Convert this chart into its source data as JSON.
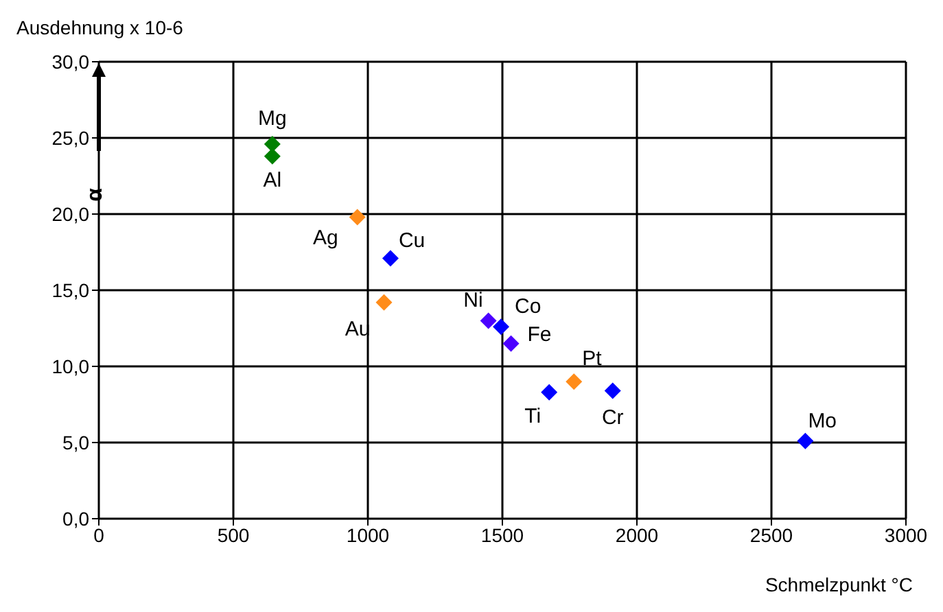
{
  "chart_data": {
    "type": "scatter",
    "ylabel": "Ausdehnung x 10-6",
    "xlabel": "Schmelzpunkt °C",
    "annotations": [
      "α",
      {
        "text": "Mg",
        "x": 645,
        "y": 24.6
      },
      {
        "text": "Al",
        "x": 645,
        "y": 23.8
      },
      {
        "text": "Ag",
        "x": 961,
        "y": 19.8
      },
      {
        "text": "Cu",
        "x": 1084,
        "y": 17.1
      },
      {
        "text": "Au",
        "x": 1060,
        "y": 14.2
      },
      {
        "text": "Ni",
        "x": 1448,
        "y": 13.0
      },
      {
        "text": "Co",
        "x": 1495,
        "y": 12.6
      },
      {
        "text": "Fe",
        "x": 1532,
        "y": 11.5
      },
      {
        "text": "Ti",
        "x": 1674,
        "y": 8.3
      },
      {
        "text": "Pt",
        "x": 1766,
        "y": 9.0
      },
      {
        "text": "Cr",
        "x": 1910,
        "y": 8.4
      },
      {
        "text": "Mo",
        "x": 2626,
        "y": 5.1
      }
    ],
    "x": [
      645,
      645,
      961,
      1084,
      1060,
      1448,
      1495,
      1532,
      1674,
      1766,
      1910,
      2626
    ],
    "values": [
      24.6,
      23.8,
      19.8,
      17.1,
      14.2,
      13.0,
      12.6,
      11.5,
      8.3,
      9.0,
      8.4,
      5.1
    ],
    "colors": [
      "#008000",
      "#008000",
      "#ff8c1a",
      "#0000ff",
      "#ff8c1a",
      "#4b00ff",
      "#0000ff",
      "#4b00ff",
      "#0000ff",
      "#ff8c1a",
      "#0000ff",
      "#0000ff"
    ],
    "marker": "diamond",
    "grid": true,
    "legend": false,
    "xlim": [
      0,
      3000
    ],
    "xticks": [
      0,
      500,
      1000,
      1500,
      2000,
      2500,
      3000
    ],
    "ylim": [
      0,
      30
    ],
    "yticks": [
      {
        "value": 0,
        "label": "0,0"
      },
      {
        "value": 5,
        "label": "5,0"
      },
      {
        "value": 10,
        "label": "10,0"
      },
      {
        "value": 15,
        "label": "15,0"
      },
      {
        "value": 20,
        "label": "20,0"
      },
      {
        "value": 25,
        "label": "25,0"
      },
      {
        "value": 30,
        "label": "30,0"
      }
    ]
  }
}
